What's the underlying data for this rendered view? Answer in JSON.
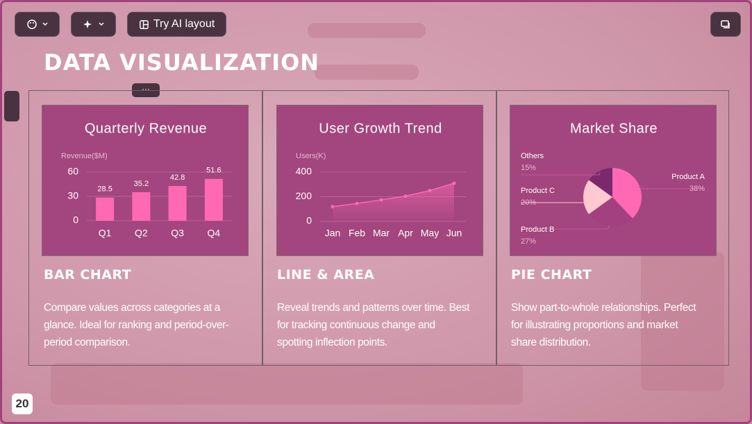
{
  "toolbar": {
    "ai_button": "Try AI layout"
  },
  "slide": {
    "title": "DATA VISUALIZATION",
    "page_number": "20"
  },
  "chart_data": [
    {
      "type": "bar",
      "title": "Quarterly Revenue",
      "y_label": "Revenue($M)",
      "categories": [
        "Q1",
        "Q2",
        "Q3",
        "Q4"
      ],
      "values": [
        28.5,
        35.2,
        42.8,
        51.6
      ],
      "color": "#ff69b4",
      "ylim": [
        0,
        60
      ],
      "yticks": [
        0,
        30,
        60
      ],
      "grid": true
    },
    {
      "type": "line",
      "title": "User Growth Trend",
      "y_label": "Users(K)",
      "categories": [
        "Jan",
        "Feb",
        "Mar",
        "Apr",
        "May",
        "Jun"
      ],
      "values": [
        120,
        145,
        175,
        205,
        250,
        310
      ],
      "color": "#ff69b4",
      "area": true,
      "ylim": [
        0,
        400
      ],
      "yticks": [
        0,
        200,
        400
      ],
      "grid": true
    },
    {
      "type": "pie",
      "title": "Market Share",
      "categories": [
        "Product A",
        "Product B",
        "Product C",
        "Others"
      ],
      "values": [
        38,
        27,
        20,
        15
      ],
      "value_labels": [
        "38%",
        "27%",
        "20%",
        "15%"
      ],
      "colors": [
        "#ff69b4",
        "#a3407f",
        "#ffc9d2",
        "#7a2a6c"
      ]
    }
  ],
  "cards": [
    {
      "heading": "BAR CHART",
      "description": "Compare values across categories at a glance. Ideal for ranking and period-over-period comparison."
    },
    {
      "heading": "LINE & AREA",
      "description": "Reveal trends and patterns over time. Best for tracking continuous change and spotting inflection points."
    },
    {
      "heading": "PIE CHART",
      "description": "Show part-to-whole relationships. Perfect for illustrating proportions and market share distribution."
    }
  ]
}
